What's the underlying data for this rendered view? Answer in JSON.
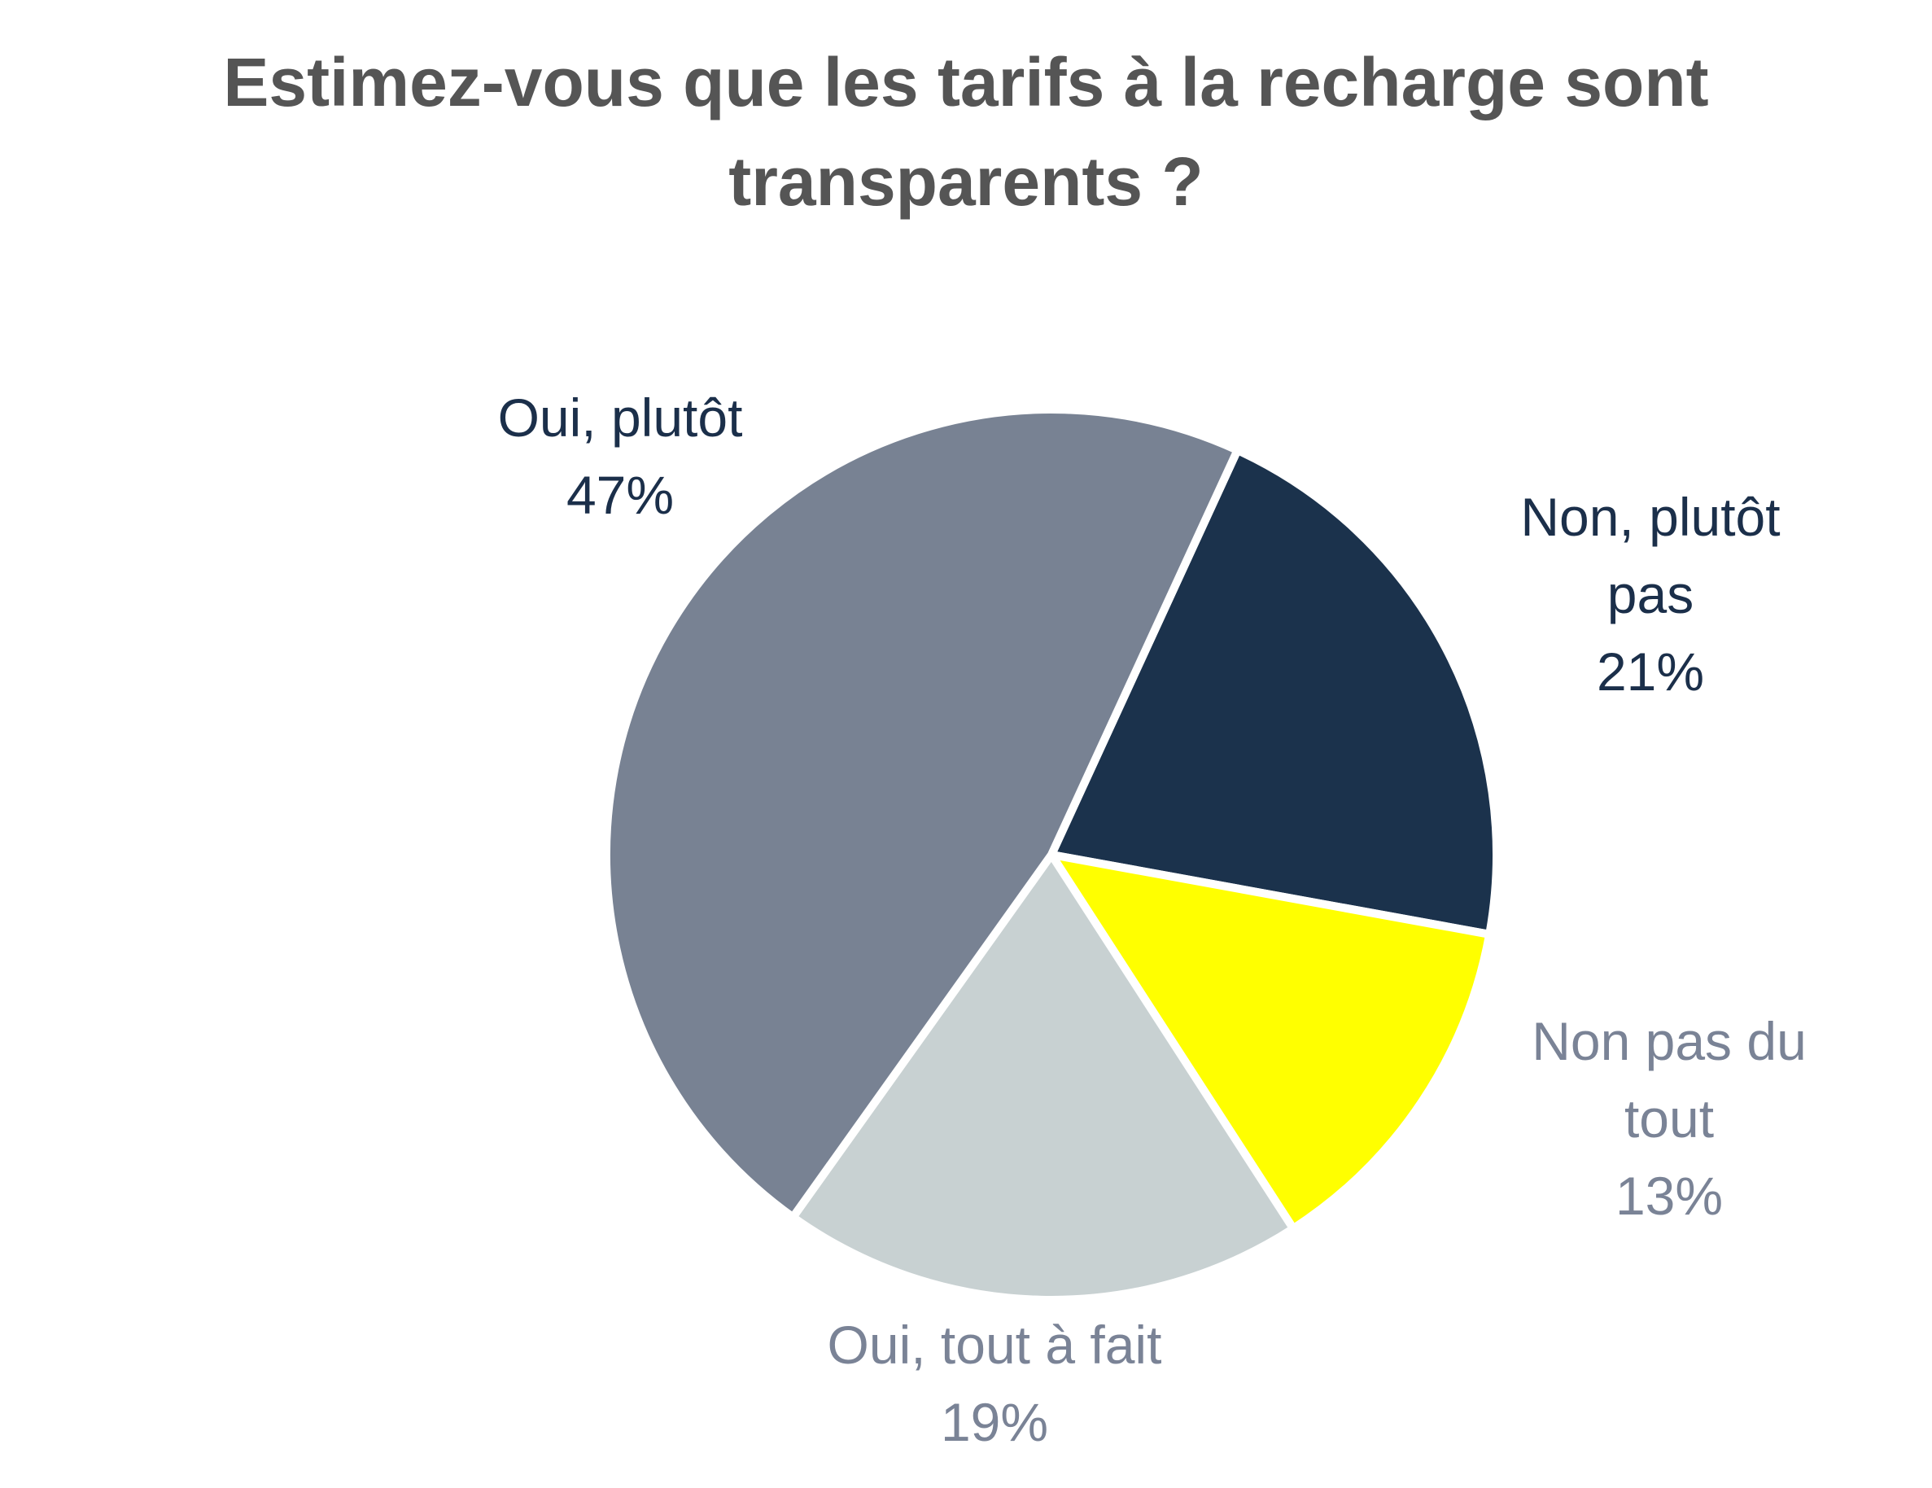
{
  "chart_data": {
    "type": "pie",
    "title": "Estimez-vous que les tarifs à la recharge sont transparents ?",
    "categories": [
      "Non, plutôt pas",
      "Non pas du tout",
      "Oui, tout à fait",
      "Oui, plutôt"
    ],
    "values": [
      21,
      13,
      19,
      47
    ],
    "value_labels": [
      "21%",
      "13%",
      "19%",
      "47%"
    ],
    "colors": [
      "#1b324c",
      "#ffff00",
      "#c8d1d2",
      "#788293"
    ],
    "label_colors": [
      "#1b2f4a",
      "#7a8396",
      "#7a8396",
      "#1b2f4a"
    ]
  }
}
